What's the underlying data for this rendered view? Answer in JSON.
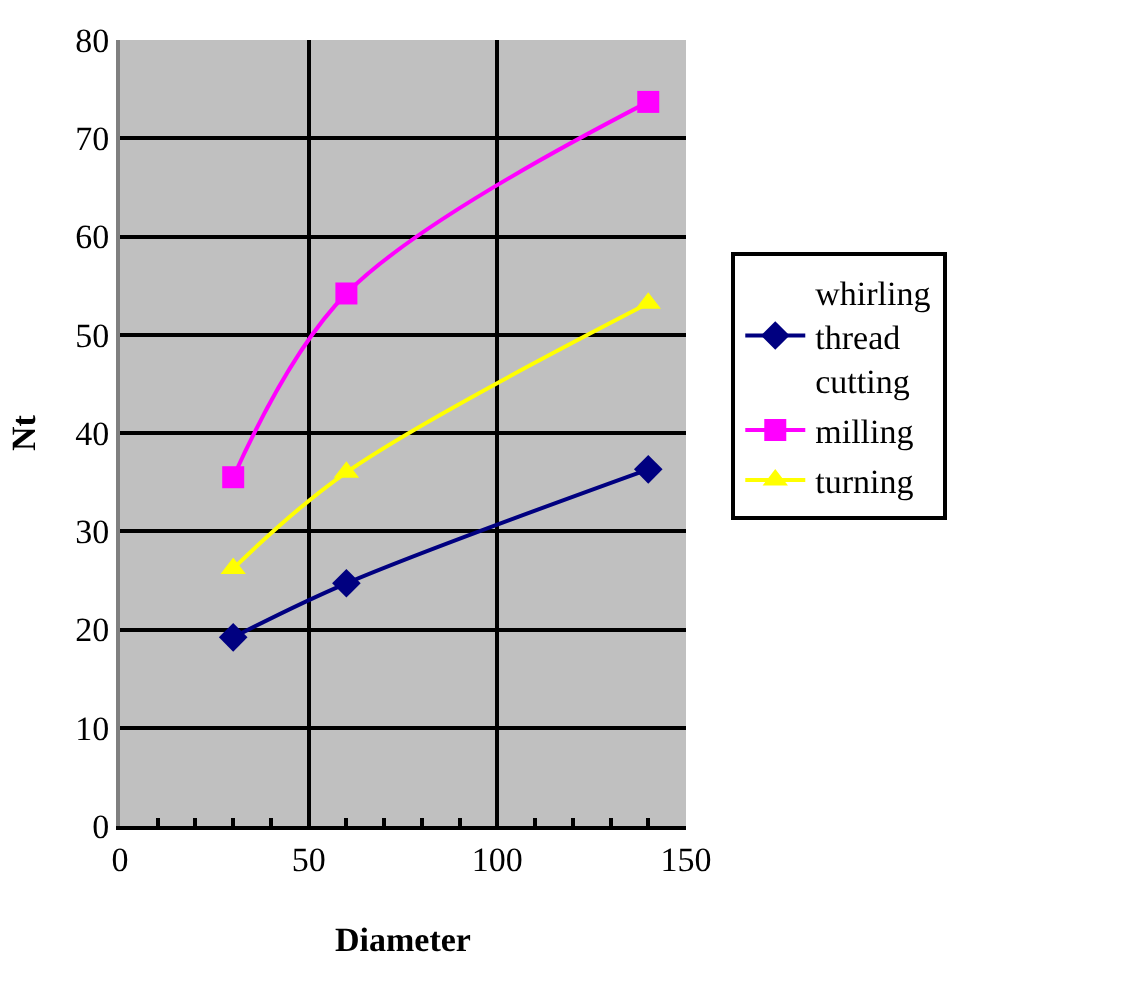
{
  "chart_data": {
    "type": "line",
    "xlabel": "Diameter",
    "ylabel": "Nt",
    "x": [
      30,
      60,
      140
    ],
    "series": [
      {
        "name": "whirling thread cutting",
        "color": "#000080",
        "marker": "diamond",
        "values": [
          19.2,
          24.7,
          36.3
        ]
      },
      {
        "name": "milling",
        "color": "#ff00ff",
        "marker": "square",
        "values": [
          35.5,
          54.2,
          73.7
        ]
      },
      {
        "name": "turning",
        "color": "#ffff00",
        "marker": "triangle",
        "values": [
          26.2,
          36.0,
          53.2
        ]
      }
    ],
    "xlim": [
      0,
      150
    ],
    "xticks": [
      0,
      50,
      100,
      150
    ],
    "ylim": [
      0,
      80
    ],
    "yticks": [
      0,
      10,
      20,
      30,
      40,
      50,
      60,
      70,
      80
    ],
    "grid": true,
    "legend": "right",
    "line_style": "solid"
  }
}
